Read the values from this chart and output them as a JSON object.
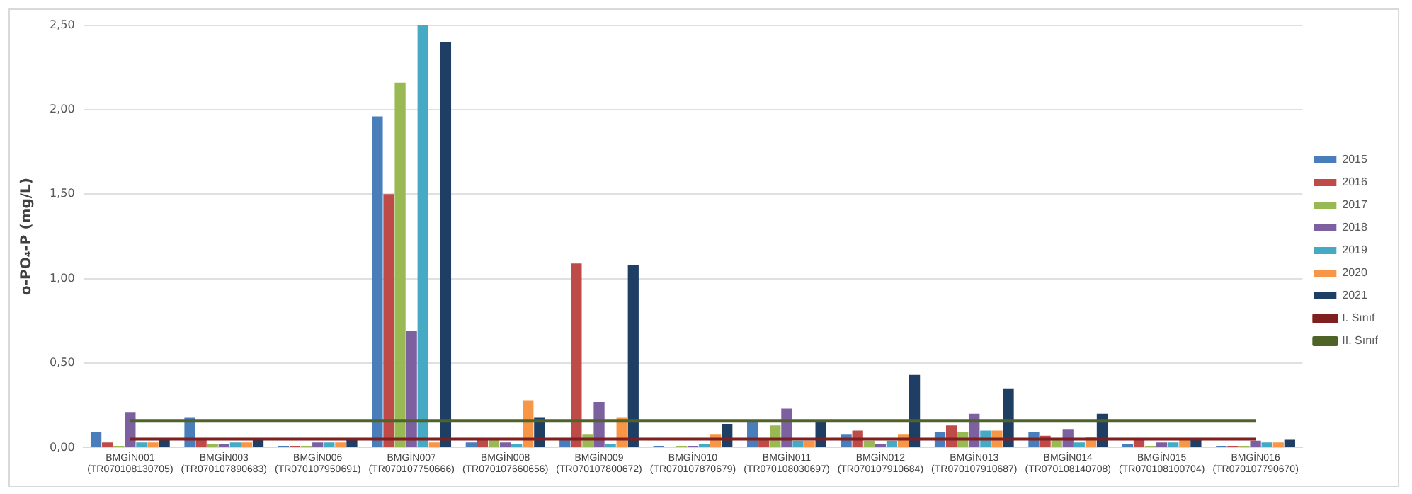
{
  "chart_data": {
    "type": "bar",
    "ylabel": "o-PO₄-P (mg/L)",
    "categories": [
      "BMGİN001\n(TR070108130705)",
      "BMGİN003\n(TR070107890683)",
      "BMGİN006\n(TR070107950691)",
      "BMGİN007\n(TR070107750666)",
      "BMGİN008\n(TR070107660656)",
      "BMGİN009\n(TR070107800672)",
      "BMGİN010\n(TR070107870679)",
      "BMGİN011\n(TR070108030697)",
      "BMGİN012\n(TR070107910684)",
      "BMGİN013\n(TR070107910687)",
      "BMGİN014\n(TR070108140708)",
      "BMGİN015\n(TR070108100704)",
      "BMGİN016\n(TR070107790670)"
    ],
    "series": [
      {
        "name": "2015",
        "color": "#4a7ebb",
        "values": [
          0.09,
          0.18,
          0.01,
          1.96,
          0.03,
          0.05,
          0.01,
          0.16,
          0.08,
          0.09,
          0.09,
          0.02,
          0.01
        ]
      },
      {
        "name": "2016",
        "color": "#be4b48",
        "values": [
          0.03,
          0.05,
          0.01,
          1.5,
          0.05,
          1.09,
          0.0,
          0.05,
          0.1,
          0.13,
          0.07,
          0.05,
          0.01
        ]
      },
      {
        "name": "2017",
        "color": "#98b954",
        "values": [
          0.01,
          0.02,
          0.01,
          2.16,
          0.05,
          0.08,
          0.01,
          0.13,
          0.04,
          0.09,
          0.05,
          0.01,
          0.01
        ]
      },
      {
        "name": "2018",
        "color": "#7d60a0",
        "values": [
          0.21,
          0.02,
          0.03,
          0.69,
          0.03,
          0.27,
          0.01,
          0.23,
          0.02,
          0.2,
          0.11,
          0.03,
          0.04
        ]
      },
      {
        "name": "2019",
        "color": "#46aac5",
        "values": [
          0.03,
          0.03,
          0.03,
          2.5,
          0.02,
          0.02,
          0.02,
          0.04,
          0.04,
          0.1,
          0.03,
          0.03,
          0.03
        ]
      },
      {
        "name": "2020",
        "color": "#f79646",
        "values": [
          0.03,
          0.03,
          0.03,
          0.03,
          0.28,
          0.18,
          0.08,
          0.04,
          0.08,
          0.1,
          0.06,
          0.05,
          0.03
        ]
      },
      {
        "name": "2021",
        "color": "#1f3e64",
        "values": [
          0.05,
          0.05,
          0.05,
          2.4,
          0.18,
          1.08,
          0.14,
          0.16,
          0.43,
          0.35,
          0.2,
          0.05,
          0.05
        ]
      },
      {
        "name": "I. Sınıf",
        "type": "line",
        "color": "#7f1f1f",
        "values": [
          0.05,
          0.05,
          0.05,
          0.05,
          0.05,
          0.05,
          0.05,
          0.05,
          0.05,
          0.05,
          0.05,
          0.05,
          0.05
        ]
      },
      {
        "name": "II. Sınıf",
        "type": "line",
        "color": "#4f6228",
        "values": [
          0.16,
          0.16,
          0.16,
          0.16,
          0.16,
          0.16,
          0.16,
          0.16,
          0.16,
          0.16,
          0.16,
          0.16,
          0.16
        ]
      }
    ],
    "ylim": [
      0,
      2.5
    ],
    "yticks": [
      {
        "value": 0,
        "label": "0,00"
      },
      {
        "value": 0.5,
        "label": "0,50"
      },
      {
        "value": 1,
        "label": "1,00"
      },
      {
        "value": 1.5,
        "label": "1,50"
      },
      {
        "value": 2,
        "label": "2,00"
      },
      {
        "value": 2.5,
        "label": "2,50"
      }
    ],
    "grid": "y",
    "legend": "right",
    "marker": "none"
  }
}
